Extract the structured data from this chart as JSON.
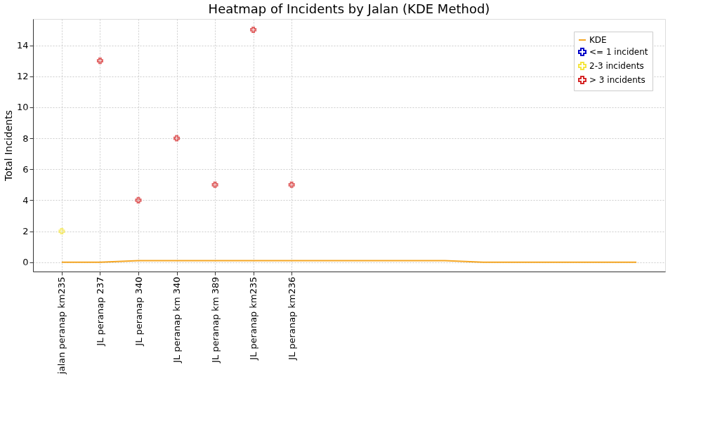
{
  "chart_data": {
    "type": "scatter",
    "title": "Heatmap of Incidents by Jalan (KDE Method)",
    "ylabel": "Total Incidents",
    "categories": [
      "jalan peranap km235",
      "JL peranap 237",
      "JL peranap 340",
      "JL peranap km 340",
      "JL peranap km 389",
      "JL peranap km235",
      "JL peranap km236",
      null,
      null,
      null,
      null,
      null,
      null,
      null,
      null,
      null
    ],
    "ylim": [
      -0.6,
      15.7
    ],
    "yticks": [
      0,
      2,
      4,
      6,
      8,
      10,
      12,
      14
    ],
    "grid": true,
    "legend": "top right",
    "marker": "cross",
    "line_style": "solid",
    "series": [
      {
        "name": "KDE",
        "type": "line",
        "marker": "none",
        "color": "#f5a623",
        "values": [
          0.0,
          0.0,
          0.1,
          0.1,
          0.1,
          0.1,
          0.1,
          0.1,
          0.1,
          0.1,
          0.1,
          0.0,
          0.0,
          0.0,
          0.0,
          0.0
        ]
      },
      {
        "name": "<= 1 incident",
        "color": "#0000c8",
        "values": [
          null,
          null,
          null,
          null,
          null,
          null,
          null,
          null,
          null,
          null,
          null,
          null,
          null,
          null,
          null,
          null
        ]
      },
      {
        "name": "2-3 incidents",
        "color": "#f5e642",
        "values": [
          2,
          null,
          null,
          null,
          null,
          null,
          null,
          null,
          null,
          null,
          null,
          null,
          null,
          null,
          null,
          null
        ]
      },
      {
        "name": "> 3 incidents",
        "color": "#d62728",
        "values": [
          null,
          13,
          4,
          8,
          5,
          15,
          5,
          null,
          null,
          null,
          null,
          null,
          null,
          null,
          null,
          null
        ]
      }
    ]
  }
}
